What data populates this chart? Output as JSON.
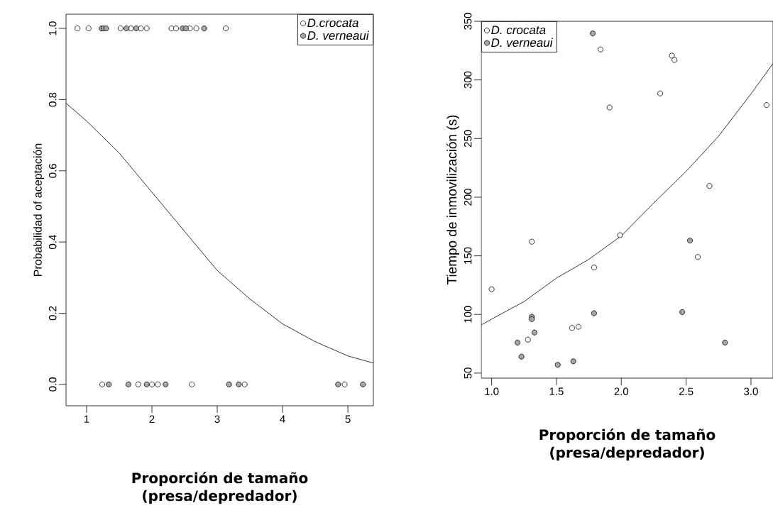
{
  "chart_data": [
    {
      "type": "scatter",
      "xlabel": "Proporción de tamaño (presa/depredador)",
      "ylabel": "Probabilidad of aceptación",
      "legend": "top right",
      "marker": "circle",
      "grid": false,
      "xlim": [
        0.685,
        5.39
      ],
      "ylim": [
        -0.06,
        1.04
      ],
      "xticks": [
        1,
        2,
        3,
        4,
        5
      ],
      "yticks": [
        {
          "value": 0,
          "label": "0.0"
        },
        {
          "value": 0.2,
          "label": "0.2"
        },
        {
          "value": 0.4,
          "label": "0.4"
        },
        {
          "value": 0.6,
          "label": "0.6"
        },
        {
          "value": 0.8,
          "label": "0.8"
        },
        {
          "value": 1,
          "label": "1.0"
        }
      ],
      "series": [
        {
          "name": "D.crocata",
          "color": "#ffffff",
          "x": [
            0.86,
            1.03,
            1.52,
            1.68,
            1.83,
            1.92,
            2.3,
            2.37,
            2.58,
            2.68,
            3.13,
            1.24,
            1.79,
            2.0,
            2.09,
            2.61,
            3.42,
            4.95
          ],
          "values": [
            1,
            1,
            1,
            1,
            1,
            1,
            1,
            1,
            1,
            1,
            1,
            0,
            0,
            0,
            0,
            0,
            0,
            0
          ]
        },
        {
          "name": "D. verneaui",
          "color": "#a6a6a6",
          "x": [
            1.23,
            1.26,
            1.3,
            1.61,
            1.76,
            2.47,
            2.52,
            2.8,
            1.34,
            1.64,
            1.92,
            2.21,
            3.18,
            3.33,
            4.85,
            5.23
          ],
          "values": [
            1,
            1,
            1,
            1,
            1,
            1,
            1,
            1,
            0,
            0,
            0,
            0,
            0,
            0,
            0,
            0
          ]
        },
        {
          "type": "line",
          "color": "#000000",
          "marker": "none",
          "x": [
            0.685,
            1,
            1.5,
            2,
            2.5,
            3,
            3.5,
            4,
            4.5,
            5,
            5.39
          ],
          "values": [
            0.79,
            0.74,
            0.65,
            0.54,
            0.43,
            0.32,
            0.24,
            0.17,
            0.12,
            0.08,
            0.06
          ]
        }
      ]
    },
    {
      "type": "scatter",
      "xlabel": "Proporción de tamaño (presa/depredador)",
      "ylabel": "Tiempo de inmovilización (s)",
      "legend": "top left",
      "marker": "circle",
      "grid": false,
      "xlim": [
        0.92,
        3.17
      ],
      "ylim": [
        45.7,
        350
      ],
      "xticks": [
        {
          "value": 1,
          "label": "1.0"
        },
        {
          "value": 1.5,
          "label": "1.5"
        },
        {
          "value": 2,
          "label": "2.0"
        },
        {
          "value": 2.5,
          "label": "2.5"
        },
        {
          "value": 3,
          "label": "3.0"
        }
      ],
      "yticks": [
        50,
        100,
        150,
        200,
        250,
        300,
        350
      ],
      "series": [
        {
          "name": "D. crocata",
          "color": "#ffffff",
          "x": [
            1.0,
            1.31,
            1.28,
            1.62,
            1.67,
            1.79,
            1.99,
            2.59,
            1.84,
            2.39,
            2.41,
            1.91,
            2.3,
            2.68,
            3.12
          ],
          "values": [
            121.5,
            162,
            78.5,
            88.5,
            89.5,
            140,
            167.6,
            149,
            326,
            320.7,
            317,
            276.5,
            288.5,
            209.6,
            278.5
          ]
        },
        {
          "name": "D. verneaui",
          "color": "#a6a6a6",
          "x": [
            1.2,
            1.23,
            1.31,
            1.31,
            1.33,
            1.51,
            1.63,
            1.79,
            2.47,
            2.53,
            2.8,
            1.78
          ],
          "values": [
            76,
            64,
            98,
            96,
            84.6,
            57,
            60,
            101,
            102,
            163,
            76,
            339.6
          ]
        },
        {
          "type": "line",
          "color": "#000000",
          "marker": "none",
          "x": [
            0.92,
            1.0,
            1.25,
            1.5,
            1.75,
            2.0,
            2.25,
            2.5,
            2.75,
            3.0,
            3.17
          ],
          "values": [
            91,
            96,
            111,
            131,
            147,
            167,
            195,
            222,
            252,
            288,
            314
          ]
        }
      ]
    }
  ]
}
